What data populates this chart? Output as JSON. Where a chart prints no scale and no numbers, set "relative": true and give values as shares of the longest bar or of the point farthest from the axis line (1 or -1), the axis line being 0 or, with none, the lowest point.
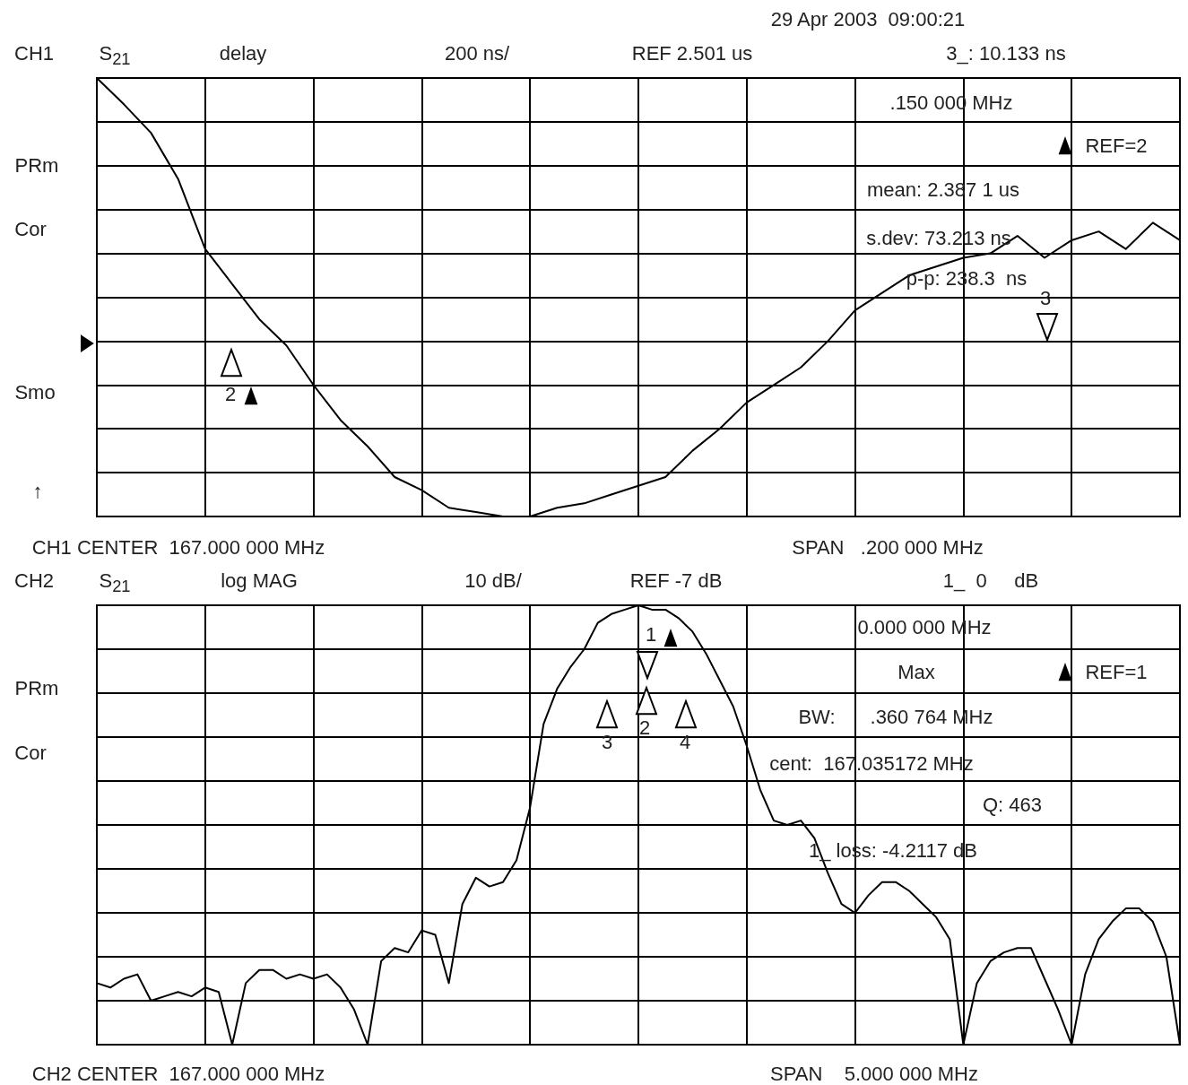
{
  "chart_data": [
    {
      "type": "line",
      "relative": true,
      "grid": true,
      "marker": "none",
      "line_style": "solid",
      "categories": [
        null,
        null,
        null,
        null,
        null,
        null,
        null,
        null,
        null,
        null,
        null,
        null,
        null,
        null,
        null,
        null,
        null,
        null,
        null,
        null,
        null,
        null,
        null,
        null,
        null,
        null,
        null,
        null,
        null,
        null,
        null,
        null,
        null,
        null,
        null,
        null,
        null,
        null,
        null,
        null,
        null
      ],
      "series": [
        {
          "color": "#000000",
          "values": [
            1.0,
            0.94,
            0.875,
            0.77,
            0.61,
            0.53,
            0.45,
            0.39,
            0.3,
            0.22,
            0.16,
            0.09,
            0.06,
            0.02,
            0.01,
            0,
            0,
            0.02,
            0.03,
            0.05,
            0.07,
            0.09,
            0.15,
            0.2,
            0.26,
            0.3,
            0.34,
            0.4,
            0.47,
            0.51,
            0.55,
            0.57,
            0.59,
            0.6,
            0.64,
            0.59,
            0.63,
            0.65,
            0.61,
            0.67,
            0.63
          ]
        }
      ],
      "annotations": [
        "29 Apr 2003  09:00:21",
        "CH1",
        "S$_{21}$",
        "delay",
        "200 ns/",
        "REF 2.501 us",
        "3_: 10.133 ns",
        "PRm",
        "Cor",
        "Smo",
        "↑",
        "CH1 CENTER  167.000 000 MHz",
        "SPAN   .200 000 MHz",
        ".150 000 MHz",
        "REF=2",
        "mean: 2.387 1 us",
        "s.dev: 73.213 ns",
        "p-p: 238.3  ns",
        "3",
        "2"
      ]
    },
    {
      "type": "line",
      "relative": true,
      "grid": true,
      "marker": "none",
      "line_style": "solid",
      "categories": [
        null,
        null,
        null,
        null,
        null,
        null,
        null,
        null,
        null,
        null,
        null,
        null,
        null,
        null,
        null,
        null,
        null,
        null,
        null,
        null,
        null,
        null,
        null,
        null,
        null,
        null,
        null,
        null,
        null,
        null,
        null,
        null,
        null,
        null,
        null,
        null,
        null,
        null,
        null,
        null,
        null,
        null,
        null,
        null,
        null,
        null,
        null,
        null,
        null,
        null,
        null,
        null,
        null,
        null,
        null,
        null,
        null,
        null,
        null,
        null,
        null,
        null,
        null,
        null,
        null,
        null,
        null,
        null,
        null,
        null,
        null,
        null,
        null,
        null,
        null,
        null,
        null,
        null,
        null,
        null,
        null
      ],
      "series": [
        {
          "color": "#000000",
          "values": [
            0.14,
            0.13,
            0.15,
            0.16,
            0.1,
            0.11,
            0.12,
            0.11,
            0.13,
            0.12,
            0,
            0.14,
            0.17,
            0.17,
            0.15,
            0.16,
            0.15,
            0.16,
            0.13,
            0.08,
            0,
            0.19,
            0.22,
            0.21,
            0.26,
            0.25,
            0.14,
            0.32,
            0.38,
            0.36,
            0.37,
            0.42,
            0.54,
            0.73,
            0.81,
            0.86,
            0.9,
            0.96,
            0.98,
            0.99,
            1,
            0.99,
            0.99,
            0.97,
            0.94,
            0.89,
            0.83,
            0.77,
            0.68,
            0.58,
            0.51,
            0.5,
            0.51,
            0.47,
            0.39,
            0.32,
            0.3,
            0.34,
            0.37,
            0.37,
            0.35,
            0.32,
            0.29,
            0.24,
            0,
            0.14,
            0.19,
            0.21,
            0.22,
            0.22,
            0.15,
            0.08,
            0,
            0.16,
            0.24,
            0.28,
            0.31,
            0.31,
            0.28,
            0.2,
            0
          ]
        }
      ],
      "annotations": [
        "CH2",
        "S$_{21}$",
        "log MAG",
        "10 dB/",
        "REF -7 dB",
        "1_  0     dB",
        "PRm",
        "Cor",
        "CH2 CENTER  167.000 000 MHz",
        "SPAN    5.000 000 MHz",
        "0.000 000 MHz",
        "Max",
        "REF=1",
        "BW:",
        ".360 764 MHz",
        "cent:  167.035172 MHz",
        "Q: 463",
        "1_ loss: -4.2117 dB",
        "1",
        "2",
        "3",
        "4"
      ]
    }
  ]
}
